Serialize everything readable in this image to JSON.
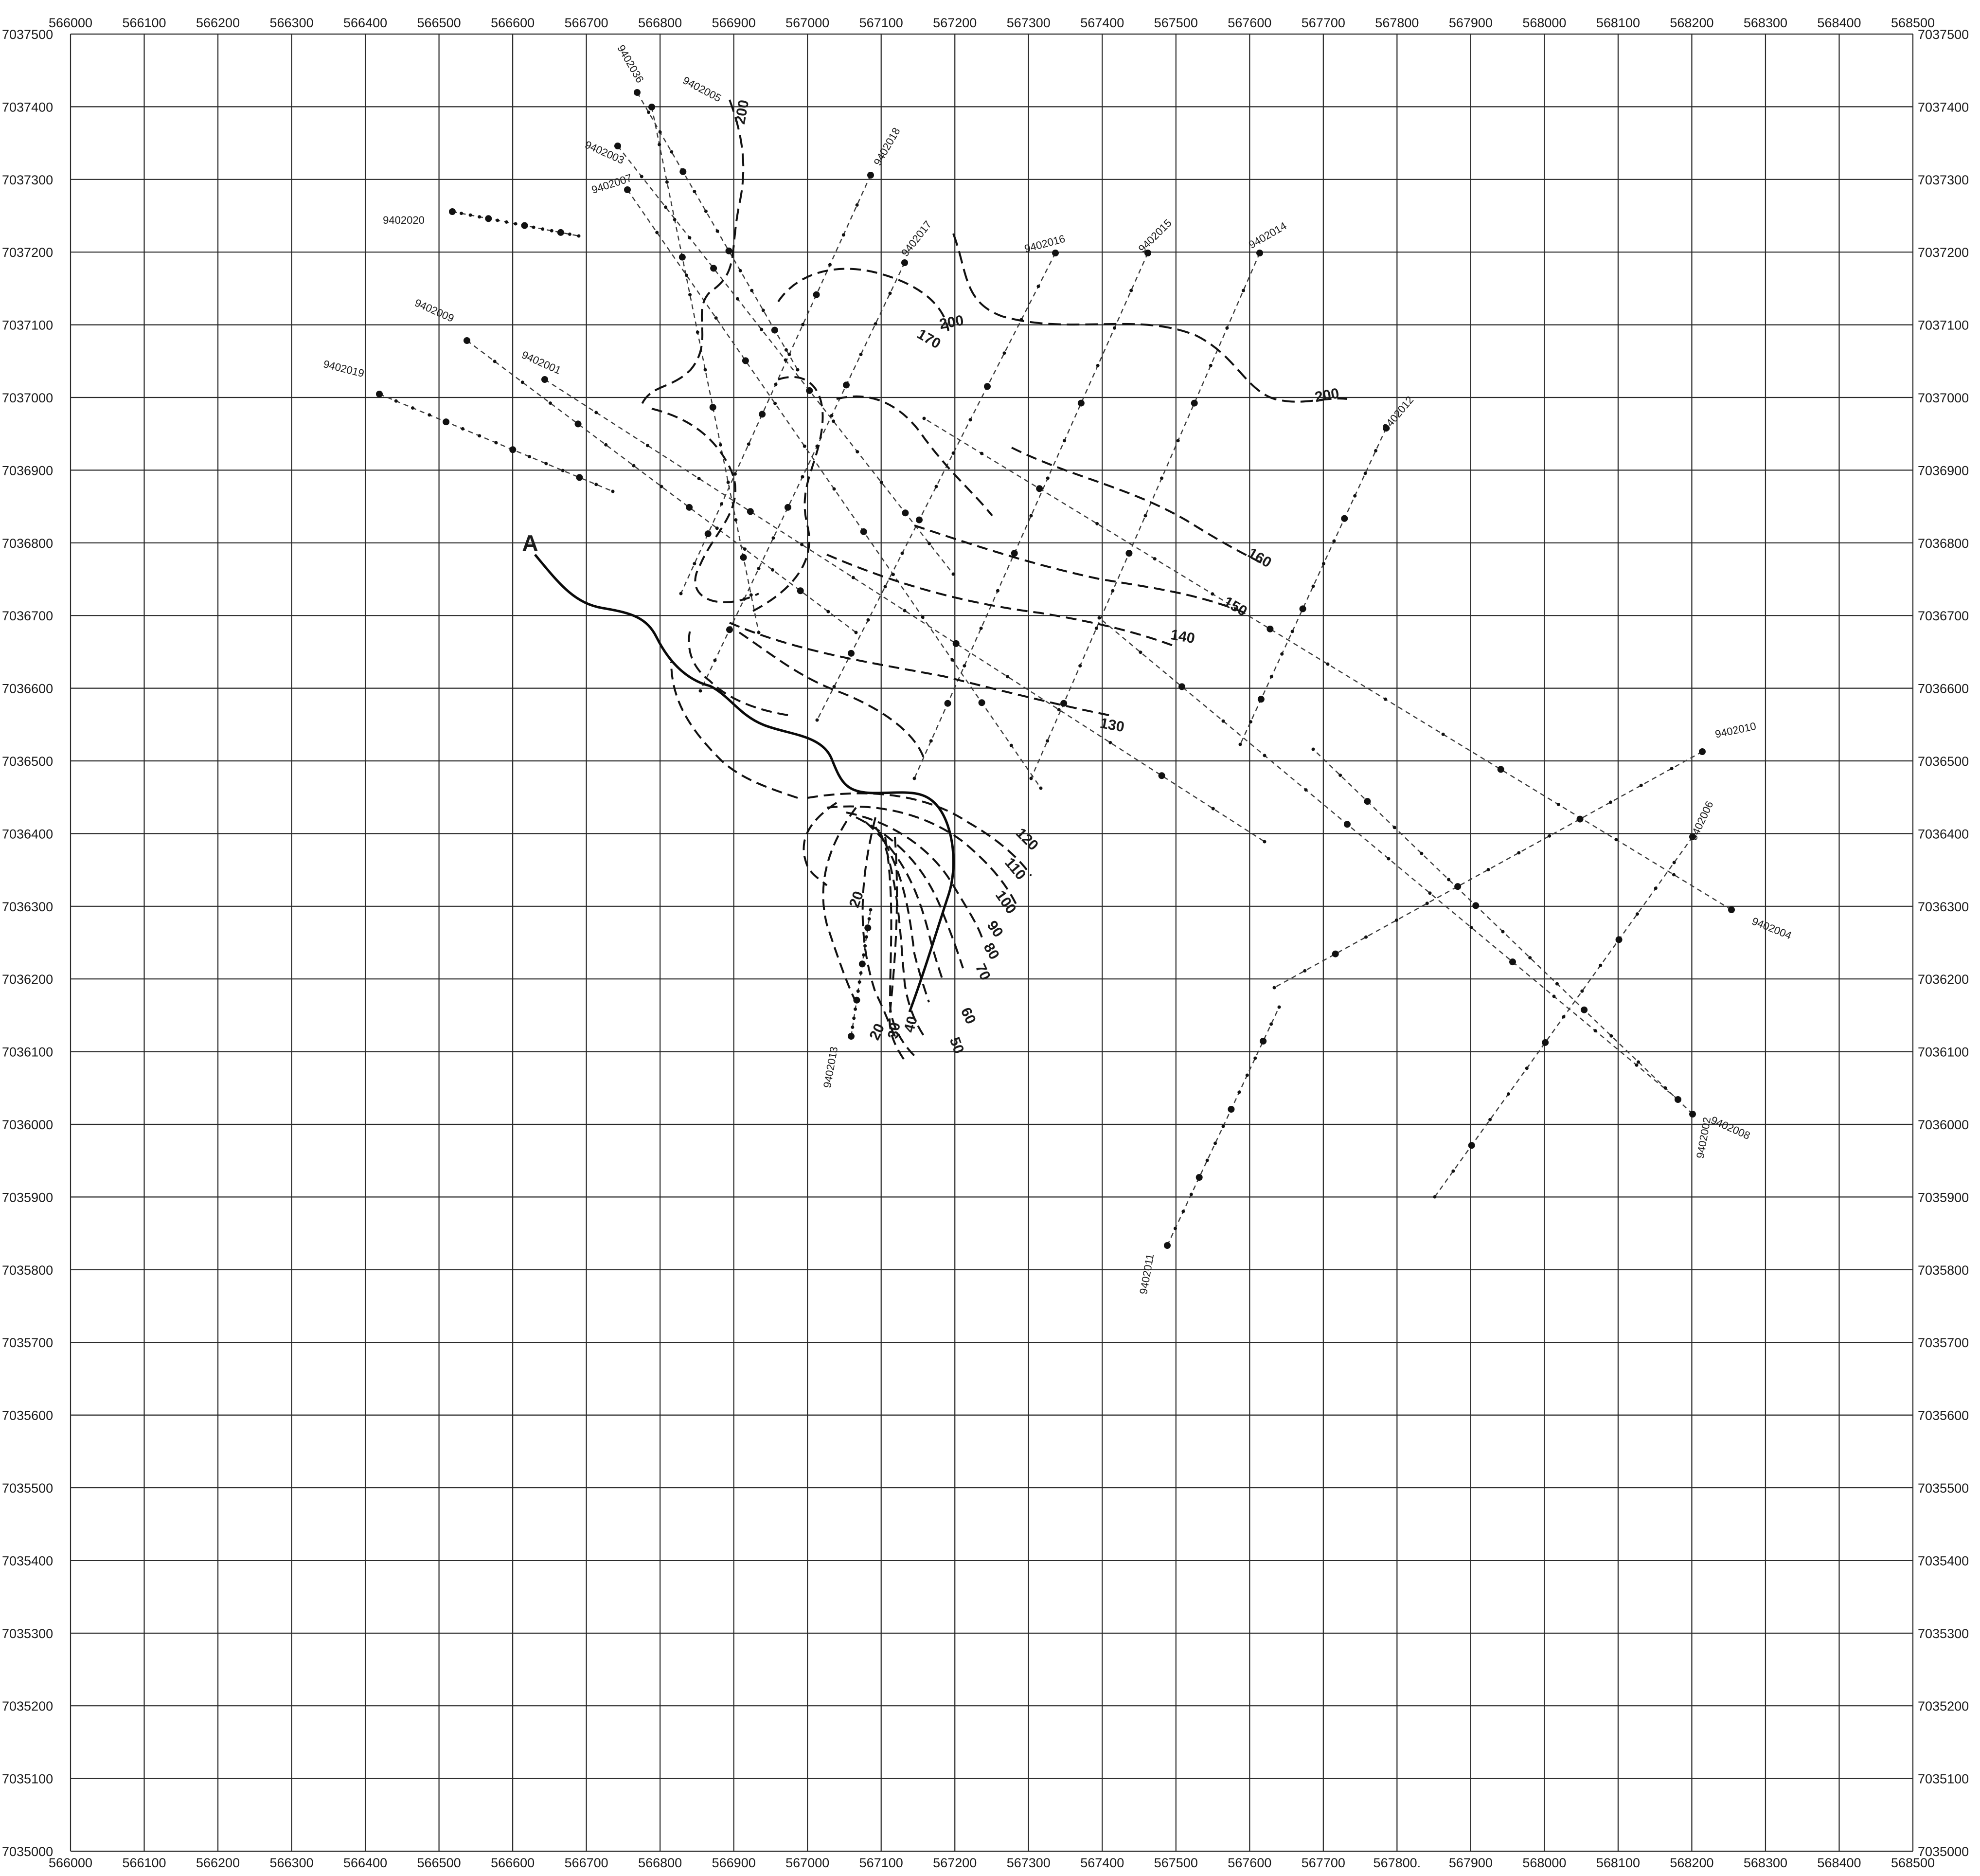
{
  "map": {
    "x_ticks": [
      "566000",
      "566100",
      "566200",
      "566300",
      "566400",
      "566500",
      "566600",
      "566700",
      "566800",
      "566900",
      "567000",
      "567100",
      "567200",
      "567300",
      "567400",
      "567500",
      "567600",
      "567700",
      "567800",
      "567900",
      "568000",
      "568100",
      "568200",
      "568300",
      "568400",
      "568500"
    ],
    "y_ticks": [
      "7037500",
      "7037400",
      "7037300",
      "7037200",
      "7037100",
      "7037000",
      "7036900",
      "7036800",
      "7036700",
      "7036600",
      "7036500",
      "7036400",
      "7036300",
      "7036200",
      "7036100",
      "7036000",
      "7035900",
      "7035800",
      "7035700",
      "7035600",
      "7035500",
      "7035400",
      "7035300",
      "7035200",
      "7035100",
      "7035000"
    ],
    "bottom_x_ticks": [
      "566000",
      "566100",
      "566200",
      "566300",
      "566400",
      "566500",
      "566600",
      "566700",
      "566800",
      "566900",
      "567000",
      "567100",
      "567200",
      "567300",
      "567400",
      "567500",
      "567600",
      "567700",
      "567800.",
      "567900",
      "568000",
      "568100",
      "568200",
      "568300",
      "568400",
      "568500"
    ],
    "line_ids": [
      "9402036",
      "9402005",
      "9402003",
      "9402007",
      "9402018",
      "9402020",
      "9402017",
      "9402016",
      "9402015",
      "9402014",
      "9402009",
      "9402001",
      "9402019",
      "9402012",
      "9402010",
      "9402006",
      "9402004",
      "9402008",
      "9402002",
      "9402013",
      "9402011"
    ],
    "contour_labels": [
      "200",
      "200",
      "170",
      "200",
      "160",
      "150",
      "140",
      "130",
      "120",
      "110",
      "100",
      "90",
      "80",
      "70",
      "60",
      "50",
      "40",
      "30",
      "20",
      "20"
    ],
    "profile_marker": "A",
    "colors": {
      "ink": "#1a1a1a",
      "grid": "#2a2a2a",
      "paper": "#ffffff"
    }
  }
}
